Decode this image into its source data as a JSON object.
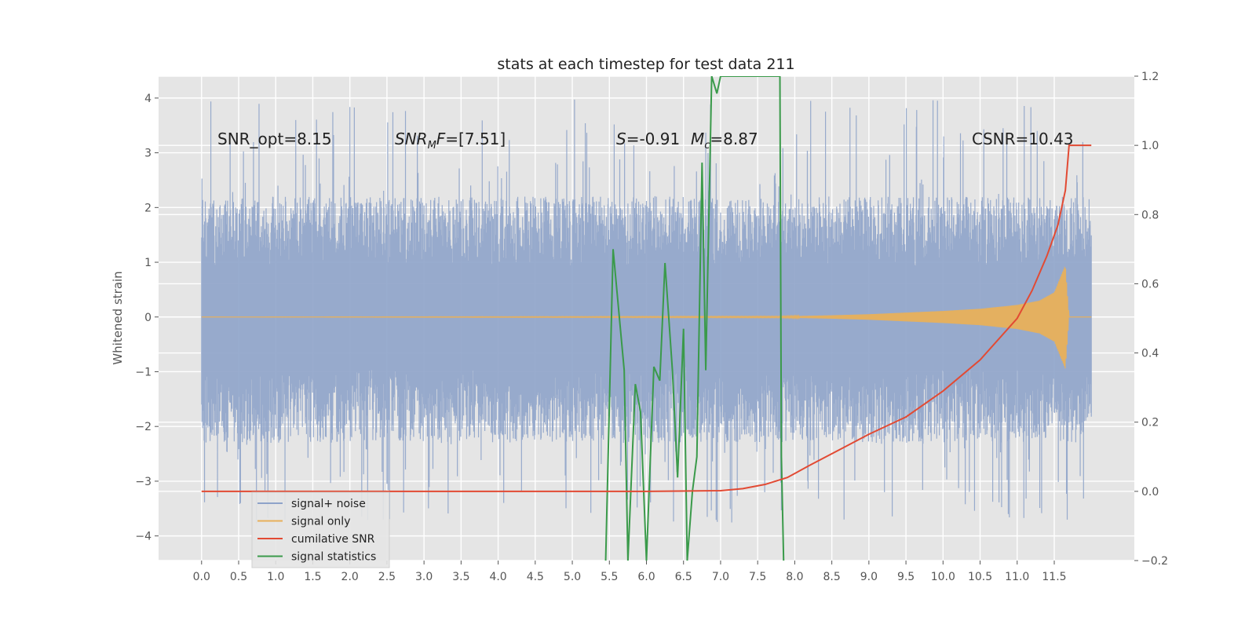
{
  "chart_data": {
    "type": "line",
    "title": "stats at each timestep for test data 211",
    "xlabel": "",
    "ylabel": "Whitened strain",
    "ylabel_right": "",
    "xlim": [
      -0.58,
      12.58
    ],
    "ylim": [
      -4.45,
      4.4
    ],
    "ylim_right": [
      -0.2,
      1.2
    ],
    "x_ticks": [
      0.0,
      0.5,
      1.0,
      1.5,
      2.0,
      2.5,
      3.0,
      3.5,
      4.0,
      4.5,
      5.0,
      5.5,
      6.0,
      6.5,
      7.0,
      7.5,
      8.0,
      8.5,
      9.0,
      9.5,
      10.0,
      10.5,
      11.0,
      11.5
    ],
    "x_tick_labels": [
      "0.0",
      "0.5",
      "1.0",
      "1.5",
      "2.0",
      "2.5",
      "3.0",
      "3.5",
      "4.0",
      "4.5",
      "5.0",
      "5.5",
      "6.0",
      "6.5",
      "7.0",
      "7.5",
      "8.0",
      "8.5",
      "9.0",
      "9.5",
      "10.0",
      "10.5",
      "11.0",
      "11.5"
    ],
    "y_ticks": [
      -4,
      -3,
      -2,
      -1,
      0,
      1,
      2,
      3,
      4
    ],
    "y_tick_labels": [
      "−4",
      "−3",
      "−2",
      "−1",
      "0",
      "1",
      "2",
      "3",
      "4"
    ],
    "y_ticks_right": [
      -0.2,
      0.0,
      0.2,
      0.4,
      0.6,
      0.8,
      1.0,
      1.2
    ],
    "y_tick_labels_right": [
      "−0.2",
      "0.0",
      "0.2",
      "0.4",
      "0.6",
      "0.8",
      "1.0",
      "1.2"
    ],
    "grid": true,
    "legend_position": "lower-left",
    "annotations": {
      "snr_opt": "SNR_opt=8.15",
      "snr_mf": "=[7.51]",
      "s_stat": "=-0.91",
      "mc": "=8.87",
      "csnr": "CSNR=10.43"
    },
    "series": [
      {
        "name": "signal+ noise",
        "color": "#8ea3c9",
        "axis": "left",
        "style": "noise",
        "x_range": [
          0.0,
          12.0
        ],
        "envelope": {
          "typical_peak": [
            -2.3,
            2.2
          ],
          "extreme": [
            -3.8,
            4.0
          ],
          "mean": 0.0
        }
      },
      {
        "name": "signal only",
        "color": "#e8b05a",
        "axis": "left",
        "style": "chirp",
        "x": [
          0.0,
          7.8,
          8.5,
          9.0,
          9.5,
          10.0,
          10.5,
          11.0,
          11.3,
          11.5,
          11.65,
          11.7,
          12.0
        ],
        "amplitude": [
          0.0,
          0.01,
          0.03,
          0.05,
          0.08,
          0.11,
          0.15,
          0.22,
          0.3,
          0.45,
          0.95,
          0.0,
          0.0
        ]
      },
      {
        "name": "cumilative SNR",
        "color": "#e24a33",
        "axis": "right",
        "x": [
          0.0,
          6.0,
          7.0,
          7.3,
          7.6,
          7.9,
          8.2,
          8.6,
          9.0,
          9.5,
          10.0,
          10.5,
          11.0,
          11.2,
          11.4,
          11.55,
          11.65,
          11.7,
          12.0
        ],
        "y": [
          0.0,
          0.0,
          0.002,
          0.008,
          0.02,
          0.04,
          0.075,
          0.12,
          0.165,
          0.215,
          0.29,
          0.38,
          0.5,
          0.58,
          0.68,
          0.77,
          0.87,
          1.0,
          1.0
        ]
      },
      {
        "name": "signal statistics",
        "color": "#348abd",
        "plot_color": "#3a9a4a",
        "axis": "right",
        "x": [
          5.45,
          5.55,
          5.7,
          5.75,
          5.85,
          5.92,
          6.0,
          6.1,
          6.18,
          6.25,
          6.35,
          6.42,
          6.5,
          6.55,
          6.62,
          6.68,
          6.75,
          6.8,
          6.88,
          6.95,
          7.0,
          7.05,
          7.8,
          7.82,
          7.85
        ],
        "y": [
          -0.2,
          0.7,
          0.35,
          -0.2,
          0.31,
          0.23,
          -0.2,
          0.36,
          0.32,
          0.66,
          0.35,
          0.04,
          0.47,
          -0.2,
          0.0,
          0.1,
          0.95,
          0.35,
          1.2,
          1.15,
          1.2,
          1.2,
          1.2,
          0.1,
          -0.2
        ]
      }
    ]
  }
}
